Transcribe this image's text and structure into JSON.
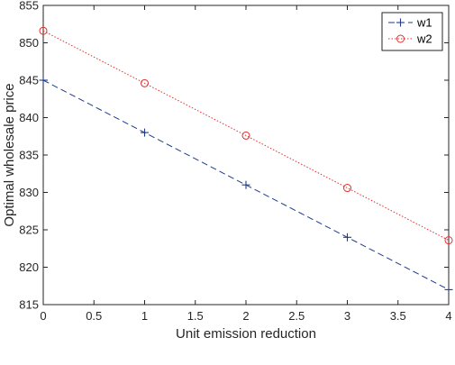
{
  "chart_data": {
    "type": "line",
    "xlabel": "Unit emission reduction",
    "ylabel": "Optimal wholesale price",
    "xlim": [
      0,
      4
    ],
    "ylim": [
      815,
      855
    ],
    "xticks": [
      "0",
      "0.5",
      "1",
      "1.5",
      "2",
      "2.5",
      "3",
      "3.5",
      "4"
    ],
    "yticks": [
      "815",
      "820",
      "825",
      "830",
      "835",
      "840",
      "845",
      "850",
      "855"
    ],
    "grid": false,
    "legend_position": "top-right",
    "series": [
      {
        "name": "w1",
        "x": [
          0,
          1,
          2,
          3,
          4
        ],
        "y": [
          845,
          838,
          831,
          824,
          817
        ],
        "line_style": "dashed",
        "marker": "plus",
        "color": "#1f3b8c"
      },
      {
        "name": "w2",
        "x": [
          0,
          1,
          2,
          3,
          4
        ],
        "y": [
          851.6,
          844.6,
          837.6,
          830.6,
          823.6
        ],
        "line_style": "dotted",
        "marker": "circle",
        "color": "#e03030"
      }
    ]
  }
}
